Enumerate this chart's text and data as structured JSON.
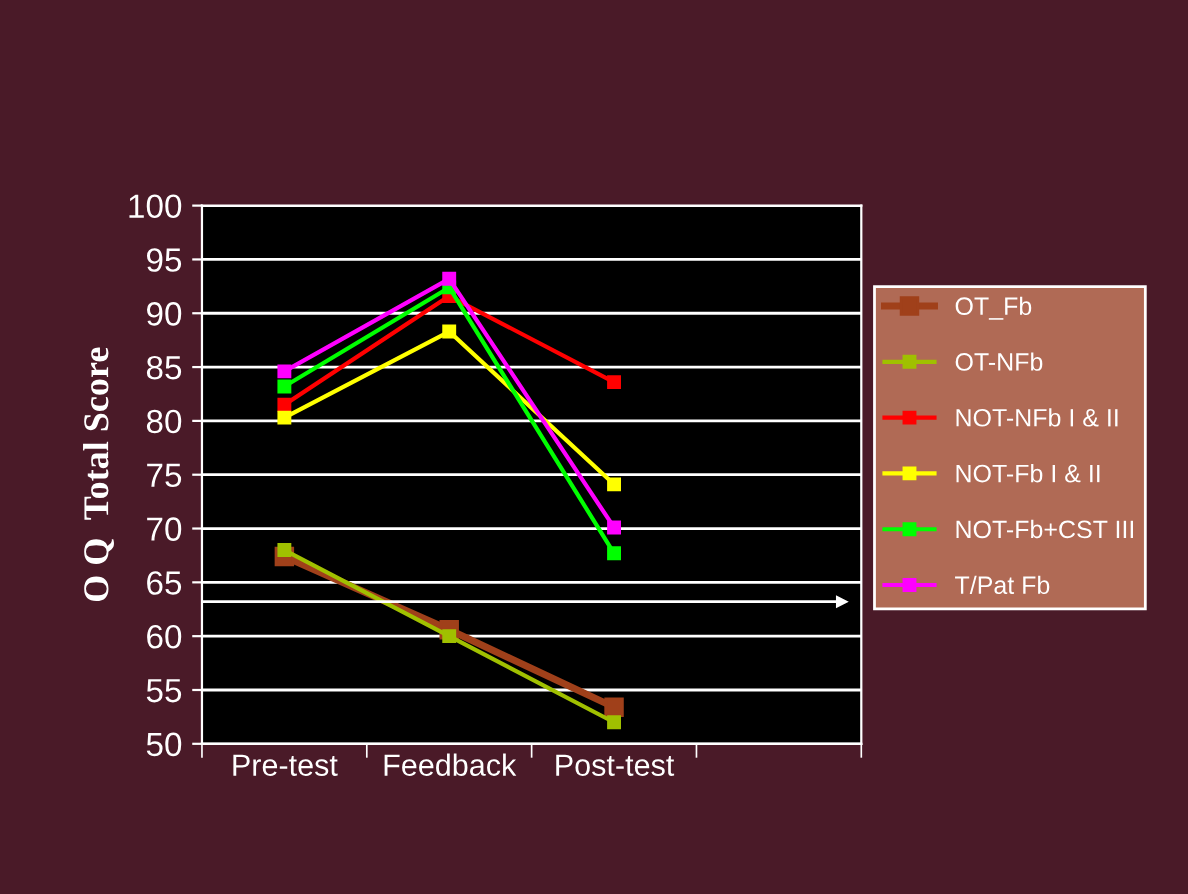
{
  "chart_data": {
    "type": "line",
    "ylabel": "O Q  Total Score",
    "categories": [
      "Pre-test",
      "Feedback",
      "Post-test",
      null
    ],
    "series": [
      {
        "name": "OT_Fb",
        "color": "#a0401a",
        "values": [
          67.4,
          60.6,
          53.4,
          null
        ]
      },
      {
        "name": "OT-NFb",
        "color": "#a0c000",
        "values": [
          68.0,
          60.0,
          52.0,
          null
        ]
      },
      {
        "name": "NOT-NFb I & II",
        "color": "#ff0000",
        "values": [
          81.5,
          91.6,
          83.6,
          null
        ]
      },
      {
        "name": "NOT-Fb I & II",
        "color": "#ffff00",
        "values": [
          80.3,
          88.3,
          74.1,
          null
        ]
      },
      {
        "name": "NOT-Fb+CST III",
        "color": "#00ff00",
        "values": [
          83.2,
          92.4,
          67.7,
          null
        ]
      },
      {
        "name": "T/Pat Fb",
        "color": "#ff00ff",
        "values": [
          84.6,
          93.2,
          70.1,
          null
        ]
      }
    ],
    "ylim": [
      50,
      100
    ],
    "yticks": [
      50,
      55,
      60,
      65,
      70,
      75,
      80,
      85,
      90,
      95,
      100
    ],
    "ref_lines": [
      {
        "axis": "y",
        "value": 63.2,
        "color": "#ffffff"
      }
    ],
    "grid": "y",
    "legend": "right",
    "marker": "square",
    "line_style": "solid"
  }
}
